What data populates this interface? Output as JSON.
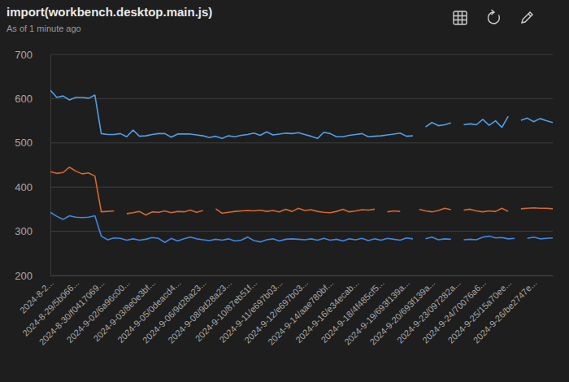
{
  "chart_data": {
    "type": "line",
    "title": "import(workbench.desktop.main.js)",
    "subtitle": "As of 1 minute ago",
    "categories": [
      "2024-8-2...",
      null,
      null,
      null,
      "2024-8-29/5b066...",
      null,
      null,
      null,
      "2024-8-30/f0417069...",
      null,
      null,
      null,
      "2024-9-02/6a96c00...",
      null,
      null,
      null,
      "2024-9-03/8e0e3bf...",
      null,
      null,
      null,
      "2024-9-05/0deacd4...",
      null,
      null,
      null,
      "2024-9-06/9d28a23...",
      null,
      null,
      null,
      "2024-9-08/9d28a23...",
      null,
      null,
      null,
      "2024-9-10/87eb51f...",
      null,
      null,
      null,
      "2024-9-11/e697b03...",
      null,
      null,
      null,
      "2024-9-12/e697b03...",
      null,
      null,
      null,
      "2024-9-14/aae780bf...",
      null,
      null,
      null,
      "2024-9-16/e34ecab...",
      null,
      null,
      null,
      "2024-9-18/4f485cf5...",
      null,
      null,
      null,
      "2024-9-19/693f139a...",
      null,
      null,
      null,
      "2024-9-20/693f139a...",
      null,
      null,
      null,
      "2024-9-23/097282a...",
      null,
      null,
      null,
      "2024-9-24/70076a6...",
      null,
      null,
      null,
      "2024-9-25/15a70ee...",
      null,
      null,
      null,
      "2024-9-26/be2747e...",
      null,
      null,
      null
    ],
    "series": [
      {
        "color": "#4f9fe8",
        "values": [
          619,
          603,
          606,
          597,
          603,
          603,
          601,
          608,
          521,
          519,
          519,
          521,
          514,
          529,
          515,
          516,
          519,
          521,
          521,
          513,
          520,
          520,
          520,
          518,
          516,
          512,
          515,
          510,
          516,
          514,
          517,
          519,
          522,
          517,
          525,
          518,
          520,
          522,
          521,
          523,
          519,
          515,
          510,
          524,
          521,
          514,
          514,
          517,
          519,
          521,
          514,
          515,
          516,
          518,
          520,
          522,
          515,
          516,
          null,
          536,
          546,
          539,
          541,
          545,
          null,
          541,
          543,
          541,
          553,
          540,
          550,
          535,
          560,
          null,
          551,
          556,
          548,
          555,
          550,
          546
        ]
      },
      {
        "color": "#d4692e",
        "values": [
          435,
          431,
          433,
          445,
          436,
          430,
          432,
          425,
          344,
          345,
          346,
          null,
          340,
          342,
          345,
          337,
          344,
          343,
          346,
          342,
          345,
          344,
          348,
          343,
          347,
          null,
          351,
          341,
          343,
          345,
          346,
          347,
          346,
          348,
          345,
          347,
          344,
          350,
          345,
          352,
          347,
          349,
          345,
          343,
          342,
          345,
          350,
          344,
          346,
          349,
          348,
          350,
          null,
          344,
          346,
          345,
          null,
          null,
          350,
          346,
          344,
          347,
          352,
          349,
          null,
          348,
          350,
          346,
          344,
          346,
          345,
          352,
          345,
          null,
          351,
          352,
          353,
          352,
          352,
          351
        ]
      },
      {
        "color": "#3f87e2",
        "values": [
          343,
          334,
          327,
          335,
          332,
          331,
          332,
          335,
          289,
          281,
          285,
          284,
          280,
          283,
          280,
          282,
          286,
          284,
          275,
          284,
          278,
          283,
          287,
          283,
          281,
          279,
          282,
          280,
          283,
          278,
          280,
          287,
          279,
          276,
          281,
          283,
          278,
          282,
          283,
          282,
          281,
          283,
          280,
          284,
          280,
          282,
          278,
          283,
          281,
          284,
          279,
          283,
          280,
          284,
          282,
          280,
          285,
          283,
          null,
          283,
          287,
          281,
          283,
          282,
          null,
          281,
          282,
          281,
          287,
          289,
          285,
          286,
          283,
          284,
          null,
          284,
          287,
          283,
          284,
          285
        ]
      }
    ],
    "ylim": [
      200,
      700
    ],
    "yticks": [
      200,
      300,
      400,
      500,
      600,
      700
    ],
    "grid": true
  }
}
